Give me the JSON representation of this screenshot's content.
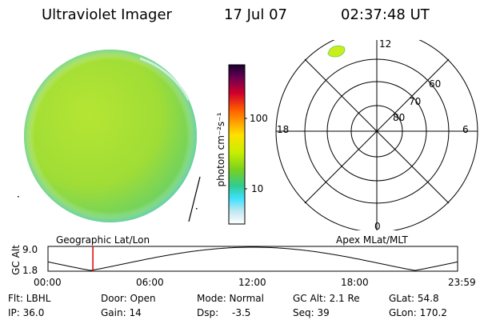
{
  "header": {
    "title": "Ultraviolet Imager",
    "date": "17 Jul 07",
    "time": "02:37:48 UT"
  },
  "colorbar": {
    "unit_label": "photon cm⁻²s⁻¹",
    "tick_100": "100",
    "tick_10": "10"
  },
  "polar": {
    "mlt_top": "12",
    "mlt_left": "18",
    "mlt_right": "6",
    "mlt_bottom": "0",
    "lat_60": "60",
    "lat_70": "70",
    "lat_80": "80"
  },
  "altitude_plot": {
    "left_label": "Geographic Lat/Lon",
    "right_label": "Apex MLat/MLT",
    "axis_label": "GC Alt",
    "y_top": "9.0",
    "y_bottom": "1.8",
    "x_ticks": [
      "00:00",
      "06:00",
      "12:00",
      "18:00",
      "23:59"
    ],
    "marker_hour": 2.63,
    "colors": {
      "curve": "#000000",
      "marker": "#e00000"
    }
  },
  "info": {
    "row1": [
      "Flt: LBHL",
      "Door: Open",
      "Mode: Normal",
      "GC Alt: 2.1 Re",
      "GLat: 54.8"
    ],
    "row2": [
      "IP: 36.0",
      "Gain: 14",
      "Dsp:",
      "-3.5",
      "Seq: 39",
      "GLon: 170.2"
    ]
  }
}
